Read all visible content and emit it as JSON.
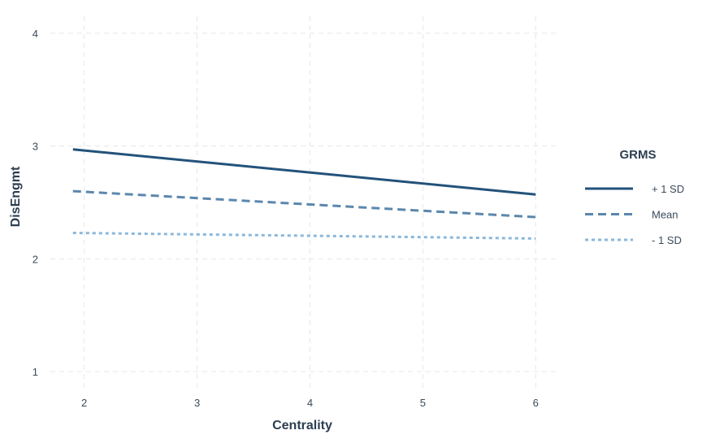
{
  "chart_data": {
    "type": "line",
    "title": "",
    "xlabel": "Centrality",
    "ylabel": "DisEngmt",
    "xlim": [
      1.7,
      6.2
    ],
    "ylim": [
      0.85,
      4.15
    ],
    "x_ticks": [
      2,
      3,
      4,
      5,
      6
    ],
    "y_ticks": [
      1,
      2,
      3,
      4
    ],
    "grid": true,
    "legend": {
      "title": "GRMS",
      "placement": "right"
    },
    "series": [
      {
        "name": "+ 1 SD",
        "x": [
          1.9,
          6
        ],
        "y": [
          2.97,
          2.57
        ],
        "color": "#23527a",
        "style": "solid"
      },
      {
        "name": "Mean",
        "x": [
          1.9,
          6
        ],
        "y": [
          2.6,
          2.37
        ],
        "color": "#5b87ad",
        "style": "dashed"
      },
      {
        "name": "- 1 SD",
        "x": [
          1.9,
          6
        ],
        "y": [
          2.23,
          2.18
        ],
        "color": "#8ab8dc",
        "style": "dotted"
      }
    ]
  }
}
